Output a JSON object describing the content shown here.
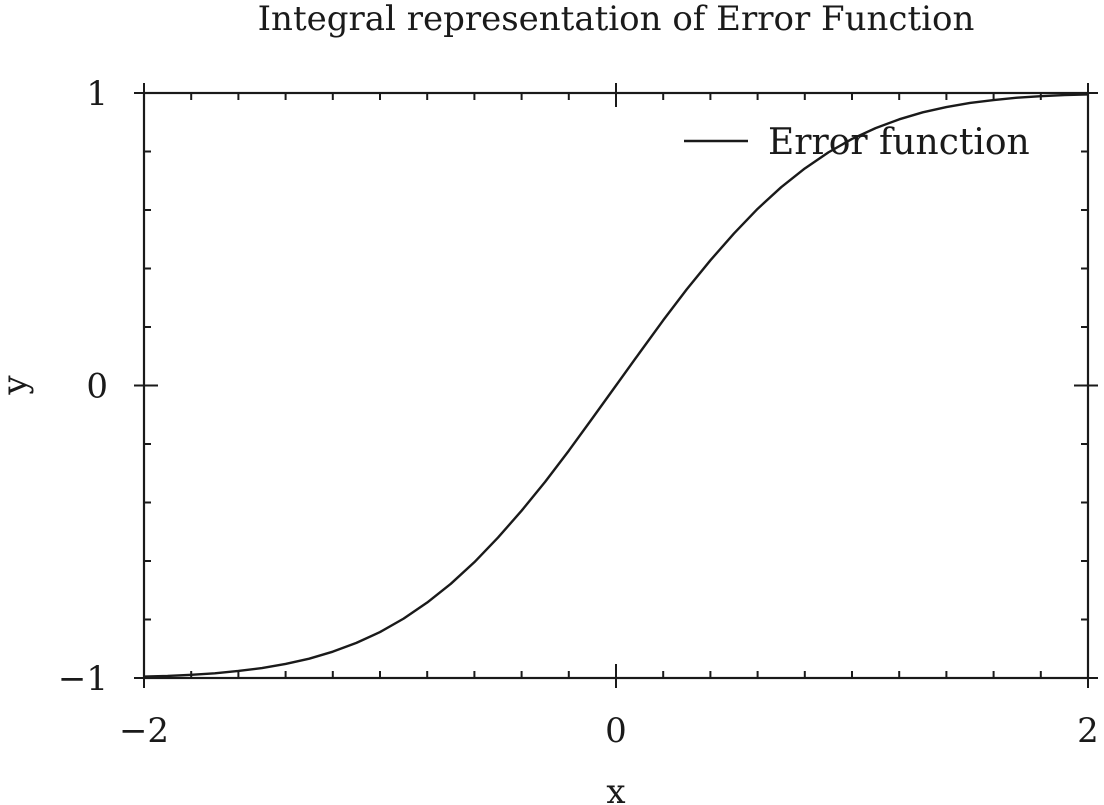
{
  "chart_data": {
    "type": "line",
    "title": "Integral representation of Error Function",
    "xlabel": "x",
    "ylabel": "y",
    "xlim": [
      -2,
      2
    ],
    "ylim": [
      -1,
      1
    ],
    "x_ticks": [
      {
        "value": -2,
        "label": "−2"
      },
      {
        "value": 0,
        "label": "0"
      },
      {
        "value": 2,
        "label": "2"
      }
    ],
    "y_ticks": [
      {
        "value": -1,
        "label": "−1"
      },
      {
        "value": 0,
        "label": "0"
      },
      {
        "value": 1,
        "label": "1"
      }
    ],
    "x_minor_step": 0.2,
    "y_minor_step": 0.2,
    "grid": false,
    "legend_position": "top-right",
    "series": [
      {
        "name": "Error function",
        "color": "#1a1a1a",
        "x": [
          -2.0,
          -1.9,
          -1.8,
          -1.7,
          -1.6,
          -1.5,
          -1.4,
          -1.3,
          -1.2,
          -1.1,
          -1.0,
          -0.9,
          -0.8,
          -0.7,
          -0.6,
          -0.5,
          -0.4,
          -0.3,
          -0.2,
          -0.1,
          0.0,
          0.1,
          0.2,
          0.3,
          0.4,
          0.5,
          0.6,
          0.7,
          0.8,
          0.9,
          1.0,
          1.1,
          1.2,
          1.3,
          1.4,
          1.5,
          1.6,
          1.7,
          1.8,
          1.9,
          2.0
        ],
        "y": [
          -0.995,
          -0.993,
          -0.989,
          -0.984,
          -0.976,
          -0.966,
          -0.952,
          -0.934,
          -0.91,
          -0.88,
          -0.843,
          -0.797,
          -0.742,
          -0.678,
          -0.604,
          -0.52,
          -0.428,
          -0.329,
          -0.223,
          -0.112,
          0.0,
          0.112,
          0.223,
          0.329,
          0.428,
          0.52,
          0.604,
          0.678,
          0.742,
          0.797,
          0.843,
          0.88,
          0.91,
          0.934,
          0.952,
          0.966,
          0.976,
          0.984,
          0.989,
          0.993,
          0.995
        ]
      }
    ]
  }
}
